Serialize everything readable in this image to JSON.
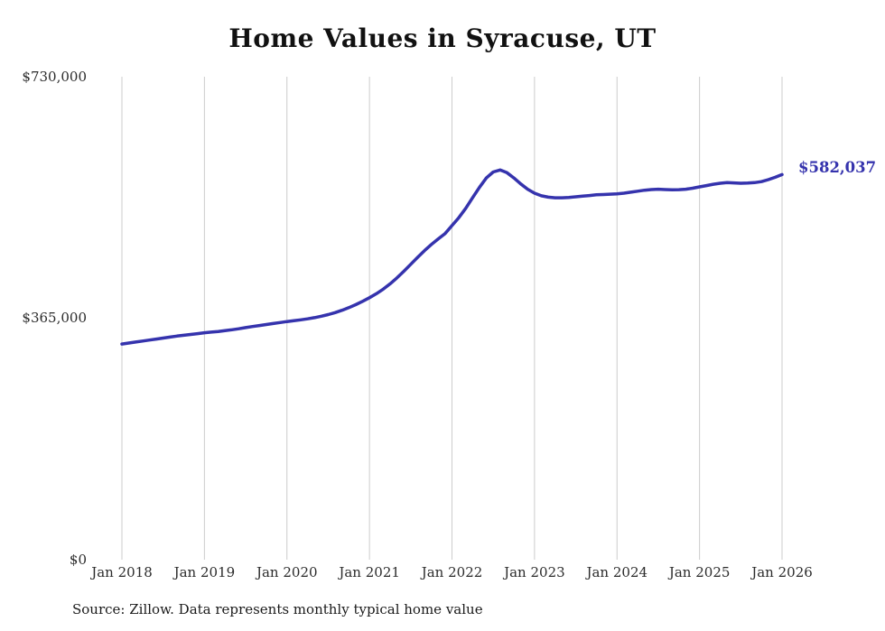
{
  "title": "Home Values in Syracuse, UT",
  "source_note": "Source: Zillow. Data represents monthly typical home value",
  "annotation_label": "$582,037",
  "colors": {
    "line": "#3533ad",
    "annotation": "#3533ad",
    "grid": "#cccccc",
    "text": "#2b2b2b",
    "title": "#111111"
  },
  "chart_data": {
    "type": "line",
    "title": "Home Values in Syracuse, UT",
    "xlabel": "",
    "ylabel": "",
    "grid": "vertical-only",
    "legend": "none",
    "ylim": [
      0,
      730000
    ],
    "y_ticks": [
      {
        "value": 0,
        "label": "$0"
      },
      {
        "value": 365000,
        "label": "$365,000"
      },
      {
        "value": 730000,
        "label": "$730,000"
      }
    ],
    "x_tick_labels": [
      "Jan 2018",
      "Jan 2019",
      "Jan 2020",
      "Jan 2021",
      "Jan 2022",
      "Jan 2023",
      "Jan 2024",
      "Jan 2025",
      "Jan 2026"
    ],
    "x_unit": "month",
    "x_range": [
      "Jan 2018",
      "Jan 2026"
    ],
    "end_value": 582037,
    "end_value_label": "$582,037",
    "series": [
      {
        "name": "Typical home value",
        "values": [
          326000,
          327500,
          329000,
          330500,
          332000,
          333500,
          335000,
          336500,
          338000,
          339200,
          340400,
          341600,
          343000,
          344000,
          345000,
          346200,
          347500,
          349000,
          350800,
          352500,
          354000,
          355500,
          357000,
          358500,
          360000,
          361200,
          362500,
          364000,
          365800,
          368000,
          370500,
          373500,
          377000,
          381000,
          385500,
          390500,
          396000,
          402000,
          409000,
          417000,
          426000,
          436000,
          446500,
          457000,
          467000,
          476500,
          485000,
          493000,
          505000,
          517000,
          531000,
          547000,
          563000,
          577000,
          586000,
          589000,
          585000,
          577000,
          568000,
          560000,
          554000,
          550000,
          548000,
          547000,
          547000,
          547500,
          548500,
          549500,
          550500,
          551500,
          552000,
          552500,
          553000,
          554000,
          555500,
          557000,
          558500,
          559500,
          560000,
          559500,
          559000,
          559300,
          560000,
          561500,
          563500,
          565500,
          567500,
          569000,
          570000,
          569500,
          569000,
          569300,
          570000,
          571500,
          574500,
          578000,
          582037
        ]
      }
    ]
  }
}
